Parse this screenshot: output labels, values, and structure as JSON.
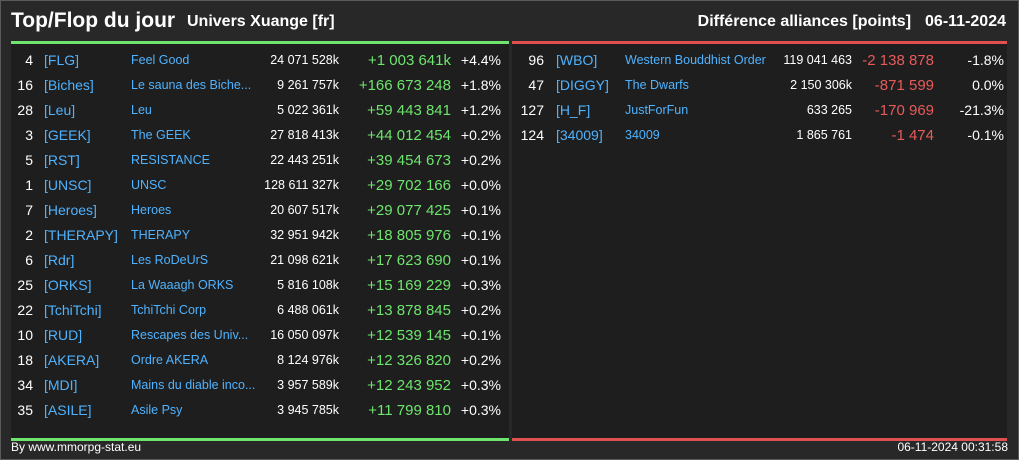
{
  "header": {
    "title": "Top/Flop du jour",
    "universe": "Univers Xuange [fr]",
    "ranking_type": "Différence alliances [points]",
    "date": "06-11-2024"
  },
  "colors": {
    "top_accent": "#6ee56e",
    "flop_accent": "#e05050",
    "link": "#4fb3ff"
  },
  "top": [
    {
      "rank": "4",
      "tag": "[FLG]",
      "name": "Feel Good",
      "total": "24 071 528k",
      "diff": "+1 003 641k",
      "pct": "+4.4%"
    },
    {
      "rank": "16",
      "tag": "[Biches]",
      "name": "Le sauna des Biche...",
      "total": "9 261 757k",
      "diff": "+166 673 248",
      "pct": "+1.8%"
    },
    {
      "rank": "28",
      "tag": "[Leu]",
      "name": "Leu",
      "total": "5 022 361k",
      "diff": "+59 443 841",
      "pct": "+1.2%"
    },
    {
      "rank": "3",
      "tag": "[GEEK]",
      "name": "The GEEK",
      "total": "27 818 413k",
      "diff": "+44 012 454",
      "pct": "+0.2%"
    },
    {
      "rank": "5",
      "tag": "[RST]",
      "name": "RESISTANCE",
      "total": "22 443 251k",
      "diff": "+39 454 673",
      "pct": "+0.2%"
    },
    {
      "rank": "1",
      "tag": "[UNSC]",
      "name": "UNSC",
      "total": "128 611 327k",
      "diff": "+29 702 166",
      "pct": "+0.0%"
    },
    {
      "rank": "7",
      "tag": "[Heroes]",
      "name": "Heroes",
      "total": "20 607 517k",
      "diff": "+29 077 425",
      "pct": "+0.1%"
    },
    {
      "rank": "2",
      "tag": "[THERAPY]",
      "name": "THERAPY",
      "total": "32 951 942k",
      "diff": "+18 805 976",
      "pct": "+0.1%"
    },
    {
      "rank": "6",
      "tag": "[Rdr]",
      "name": "Les RoDeUrS",
      "total": "21 098 621k",
      "diff": "+17 623 690",
      "pct": "+0.1%"
    },
    {
      "rank": "25",
      "tag": "[ORKS]",
      "name": "La Waaagh ORKS",
      "total": "5 816 108k",
      "diff": "+15 169 229",
      "pct": "+0.3%"
    },
    {
      "rank": "22",
      "tag": "[TchiTchi]",
      "name": "TchiTchi Corp",
      "total": "6 488 061k",
      "diff": "+13 878 845",
      "pct": "+0.2%"
    },
    {
      "rank": "10",
      "tag": "[RUD]",
      "name": "Rescapes des Univ...",
      "total": "16 050 097k",
      "diff": "+12 539 145",
      "pct": "+0.1%"
    },
    {
      "rank": "18",
      "tag": "[AKERA]",
      "name": "Ordre AKERA",
      "total": "8 124 976k",
      "diff": "+12 326 820",
      "pct": "+0.2%"
    },
    {
      "rank": "34",
      "tag": "[MDI]",
      "name": "Mains du diable inco...",
      "total": "3 957 589k",
      "diff": "+12 243 952",
      "pct": "+0.3%"
    },
    {
      "rank": "35",
      "tag": "[ASILE]",
      "name": "Asile Psy",
      "total": "3 945 785k",
      "diff": "+11 799 810",
      "pct": "+0.3%"
    }
  ],
  "flop": [
    {
      "rank": "96",
      "tag": "[WBO]",
      "name": "Western Bouddhist Order",
      "total": "119 041 463",
      "diff": "-2 138 878",
      "pct": "-1.8%"
    },
    {
      "rank": "47",
      "tag": "[DIGGY]",
      "name": "The Dwarfs",
      "total": "2 150 306k",
      "diff": "-871 599",
      "pct": "0.0%"
    },
    {
      "rank": "127",
      "tag": "[H_F]",
      "name": "JustForFun",
      "total": "633 265",
      "diff": "-170 969",
      "pct": "-21.3%"
    },
    {
      "rank": "124",
      "tag": "[34009]",
      "name": "34009",
      "total": "1 865 761",
      "diff": "-1 474",
      "pct": "-0.1%"
    }
  ],
  "footer": {
    "source": "By www.mmorpg-stat.eu",
    "timestamp": "06-11-2024 00:31:58"
  }
}
